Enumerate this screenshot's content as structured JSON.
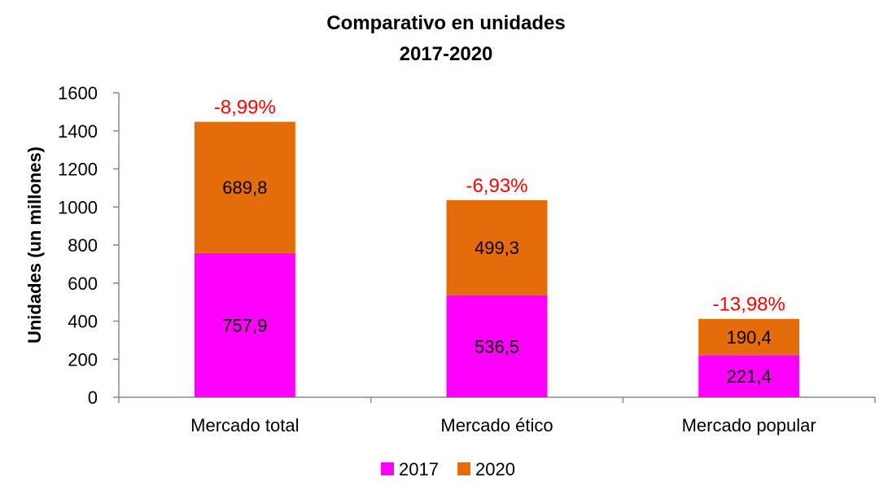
{
  "chart_data": {
    "type": "bar",
    "stacked": true,
    "title_lines": [
      "Comparativo en unidades",
      "2017-2020"
    ],
    "xlabel": "",
    "ylabel": "Unidades (un millones)",
    "ylim": [
      0,
      1600
    ],
    "yticks": [
      0,
      200,
      400,
      600,
      800,
      1000,
      1200,
      1400,
      1600
    ],
    "grid": false,
    "legend_position": "bottom",
    "categories": [
      "Mercado total",
      "Mercado ético",
      "Mercado popular"
    ],
    "series": [
      {
        "name": "2017",
        "color": "#ff00ff",
        "values": [
          757.9,
          536.5,
          221.4
        ],
        "labels": [
          "757,9",
          "536,5",
          "221,4"
        ]
      },
      {
        "name": "2020",
        "color": "#e46c0a",
        "values": [
          689.8,
          499.3,
          190.4
        ],
        "labels": [
          "689,8",
          "499,3",
          "190,4"
        ]
      }
    ],
    "annotations": [
      "-8,99%",
      "-6,93%",
      "-13,98%"
    ],
    "annotation_color": "#ff0000"
  }
}
